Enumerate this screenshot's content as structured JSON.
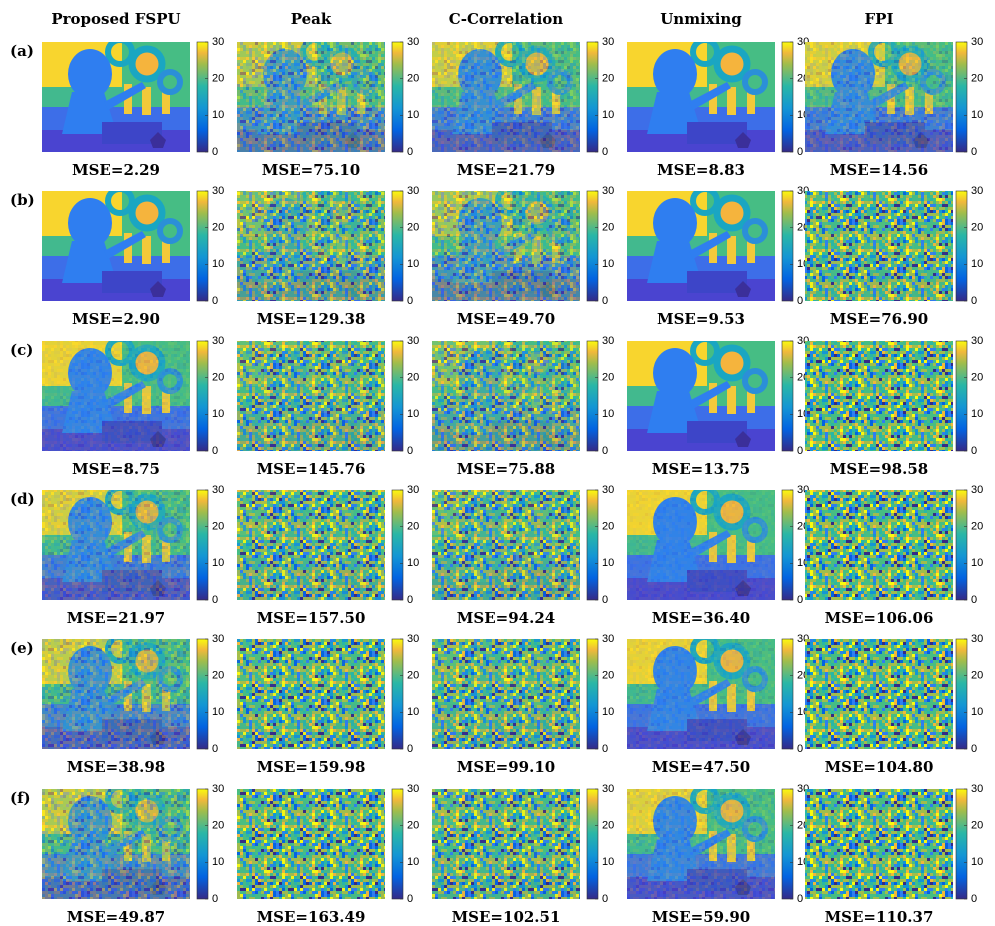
{
  "columns": [
    "Proposed FSPU",
    "Peak",
    "C-Correlation",
    "Unmixing",
    "FPI"
  ],
  "rows": [
    {
      "label": "(a)",
      "mse": [
        "MSE=2.29",
        "MSE=75.10",
        "MSE=21.79",
        "MSE=8.83",
        "MSE=14.56"
      ]
    },
    {
      "label": "(b)",
      "mse": [
        "MSE=2.90",
        "MSE=129.38",
        "MSE=49.70",
        "MSE=9.53",
        "MSE=76.90"
      ]
    },
    {
      "label": "(c)",
      "mse": [
        "MSE=8.75",
        "MSE=145.76",
        "MSE=75.88",
        "MSE=13.75",
        "MSE=98.58"
      ]
    },
    {
      "label": "(d)",
      "mse": [
        "MSE=21.97",
        "MSE=157.50",
        "MSE=94.24",
        "MSE=36.40",
        "MSE=106.06"
      ]
    },
    {
      "label": "(e)",
      "mse": [
        "MSE=38.98",
        "MSE=159.98",
        "MSE=99.10",
        "MSE=47.50",
        "MSE=104.80"
      ]
    },
    {
      "label": "(f)",
      "mse": [
        "MSE=49.87",
        "MSE=163.49",
        "MSE=102.51",
        "MSE=59.90",
        "MSE=110.37"
      ]
    }
  ],
  "colorbar": {
    "lim": [
      0,
      30
    ],
    "ticks": [
      0,
      10,
      20,
      30
    ]
  }
}
